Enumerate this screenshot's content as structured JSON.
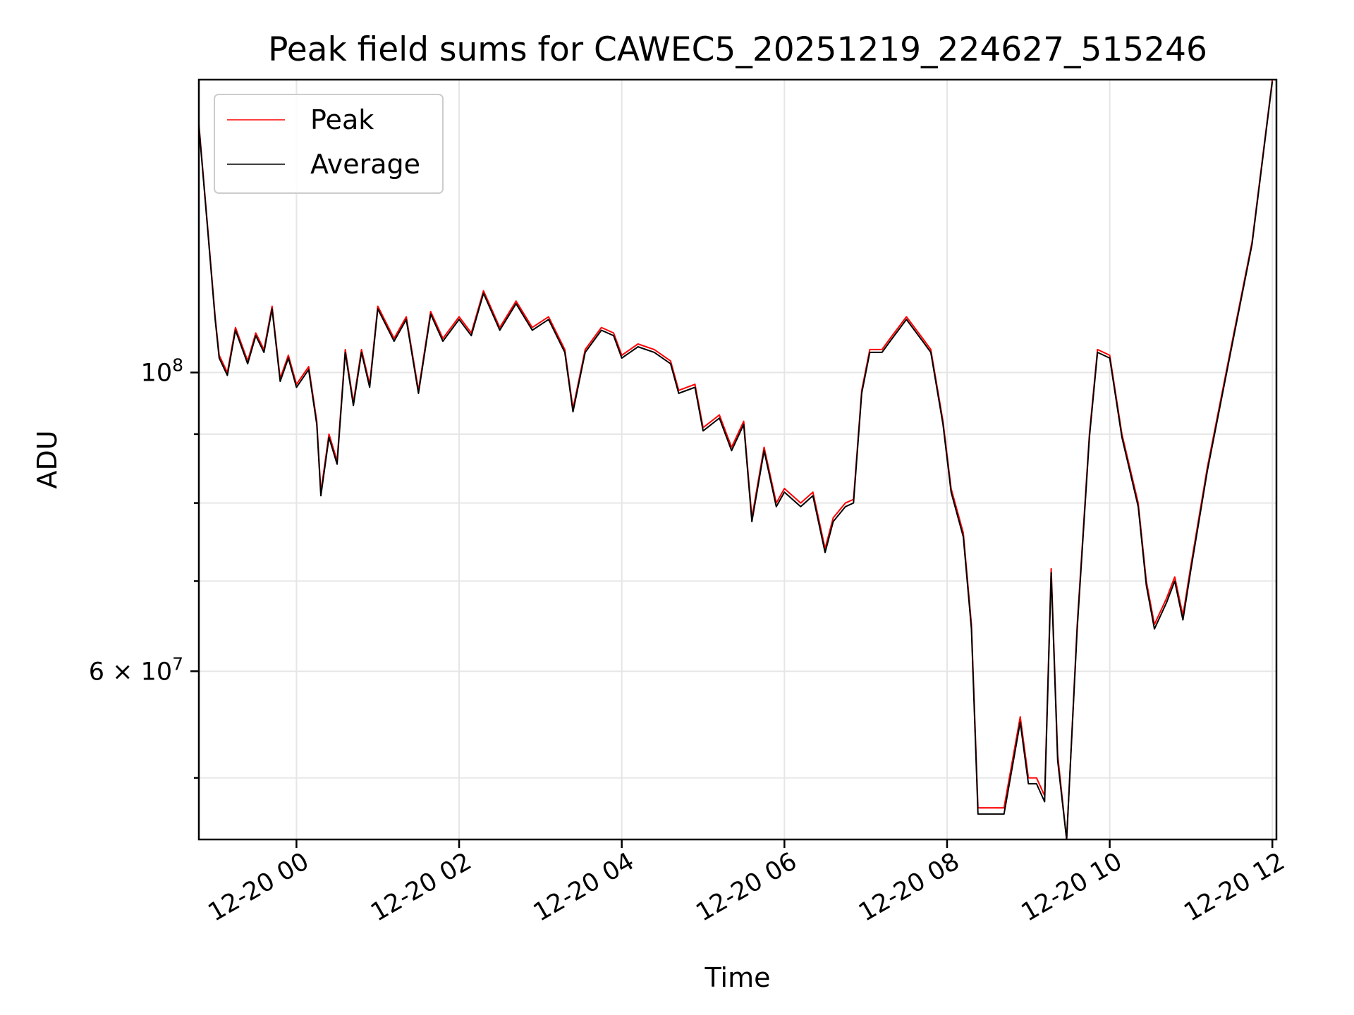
{
  "chart_data": {
    "type": "line",
    "title": "Peak field sums for CAWEC5_20251219_224627_515246",
    "xlabel": "Time",
    "ylabel": "ADU",
    "yscale": "log",
    "xlim_hours": [
      -1.2,
      12.05
    ],
    "ylim": [
      45000000,
      165000000
    ],
    "x_unit": "hours since 12-20 00:00",
    "grid": true,
    "legend_position": "top-left",
    "x_ticks": [
      {
        "value": 0,
        "label": "12-20 00"
      },
      {
        "value": 2,
        "label": "12-20 02"
      },
      {
        "value": 4,
        "label": "12-20 04"
      },
      {
        "value": 6,
        "label": "12-20 06"
      },
      {
        "value": 8,
        "label": "12-20 08"
      },
      {
        "value": 10,
        "label": "12-20 10"
      },
      {
        "value": 12,
        "label": "12-20 12"
      }
    ],
    "y_major_ticks": [
      {
        "value": 60000000,
        "label_base": "6 × 10",
        "label_exp": "7"
      },
      {
        "value": 100000000,
        "label_base": "10",
        "label_exp": "8"
      }
    ],
    "y_minor_gridlines": [
      50000000,
      70000000,
      80000000,
      90000000
    ],
    "series": [
      {
        "name": "Peak",
        "color": "#ff0000",
        "points": [
          [
            -1.2,
            153000000
          ],
          [
            -1.1,
            130000000
          ],
          [
            -1.0,
            110000000
          ],
          [
            -0.95,
            103000000
          ],
          [
            -0.85,
            100000000
          ],
          [
            -0.75,
            108000000
          ],
          [
            -0.6,
            102000000
          ],
          [
            -0.5,
            107000000
          ],
          [
            -0.4,
            104000000
          ],
          [
            -0.3,
            112000000
          ],
          [
            -0.2,
            99000000
          ],
          [
            -0.1,
            103000000
          ],
          [
            0.0,
            98000000
          ],
          [
            0.15,
            101000000
          ],
          [
            0.25,
            92000000
          ],
          [
            0.3,
            81500000
          ],
          [
            0.4,
            90000000
          ],
          [
            0.5,
            86000000
          ],
          [
            0.6,
            104000000
          ],
          [
            0.7,
            95000000
          ],
          [
            0.8,
            104000000
          ],
          [
            0.9,
            98000000
          ],
          [
            1.0,
            112000000
          ],
          [
            1.2,
            106000000
          ],
          [
            1.35,
            110000000
          ],
          [
            1.5,
            97000000
          ],
          [
            1.65,
            111000000
          ],
          [
            1.8,
            106000000
          ],
          [
            2.0,
            110000000
          ],
          [
            2.15,
            107000000
          ],
          [
            2.3,
            115000000
          ],
          [
            2.5,
            108000000
          ],
          [
            2.7,
            113000000
          ],
          [
            2.9,
            108000000
          ],
          [
            3.1,
            110000000
          ],
          [
            3.3,
            104000000
          ],
          [
            3.4,
            94000000
          ],
          [
            3.55,
            104000000
          ],
          [
            3.75,
            108000000
          ],
          [
            3.9,
            107000000
          ],
          [
            4.0,
            103000000
          ],
          [
            4.2,
            105000000
          ],
          [
            4.4,
            104000000
          ],
          [
            4.6,
            102000000
          ],
          [
            4.7,
            97000000
          ],
          [
            4.9,
            98000000
          ],
          [
            5.0,
            91000000
          ],
          [
            5.2,
            93000000
          ],
          [
            5.35,
            88000000
          ],
          [
            5.5,
            92000000
          ],
          [
            5.6,
            78000000
          ],
          [
            5.75,
            88000000
          ],
          [
            5.9,
            80000000
          ],
          [
            6.0,
            82000000
          ],
          [
            6.2,
            80000000
          ],
          [
            6.35,
            81500000
          ],
          [
            6.5,
            74000000
          ],
          [
            6.6,
            78000000
          ],
          [
            6.75,
            80000000
          ],
          [
            6.85,
            80500000
          ],
          [
            6.95,
            97000000
          ],
          [
            7.05,
            104000000
          ],
          [
            7.2,
            104000000
          ],
          [
            7.3,
            106000000
          ],
          [
            7.5,
            110000000
          ],
          [
            7.7,
            106000000
          ],
          [
            7.8,
            104000000
          ],
          [
            7.95,
            92000000
          ],
          [
            8.05,
            82000000
          ],
          [
            8.2,
            76000000
          ],
          [
            8.3,
            65000000
          ],
          [
            8.38,
            47500000
          ],
          [
            8.7,
            47500000
          ],
          [
            8.9,
            55500000
          ],
          [
            9.0,
            50000000
          ],
          [
            9.1,
            50000000
          ],
          [
            9.2,
            48500000
          ],
          [
            9.28,
            71500000
          ],
          [
            9.36,
            52000000
          ],
          [
            9.47,
            45000000
          ],
          [
            9.6,
            65000000
          ],
          [
            9.75,
            90000000
          ],
          [
            9.85,
            104000000
          ],
          [
            10.0,
            103000000
          ],
          [
            10.15,
            90000000
          ],
          [
            10.35,
            80000000
          ],
          [
            10.45,
            70000000
          ],
          [
            10.55,
            65000000
          ],
          [
            10.7,
            68000000
          ],
          [
            10.8,
            70500000
          ],
          [
            10.9,
            66000000
          ],
          [
            11.0,
            72000000
          ],
          [
            11.2,
            85000000
          ],
          [
            11.5,
            105000000
          ],
          [
            11.75,
            125000000
          ],
          [
            12.0,
            165000000
          ]
        ]
      },
      {
        "name": "Average",
        "color": "#000000",
        "points": [
          [
            -1.2,
            152500000
          ],
          [
            -1.1,
            129500000
          ],
          [
            -1.0,
            109500000
          ],
          [
            -0.95,
            102500000
          ],
          [
            -0.85,
            99500000
          ],
          [
            -0.75,
            107500000
          ],
          [
            -0.6,
            101500000
          ],
          [
            -0.5,
            106500000
          ],
          [
            -0.4,
            103500000
          ],
          [
            -0.3,
            111500000
          ],
          [
            -0.2,
            98500000
          ],
          [
            -0.1,
            102500000
          ],
          [
            0.0,
            97500000
          ],
          [
            0.15,
            100500000
          ],
          [
            0.25,
            91500000
          ],
          [
            0.3,
            81000000
          ],
          [
            0.4,
            89500000
          ],
          [
            0.5,
            85500000
          ],
          [
            0.6,
            103500000
          ],
          [
            0.7,
            94500000
          ],
          [
            0.8,
            103500000
          ],
          [
            0.9,
            97500000
          ],
          [
            1.0,
            111500000
          ],
          [
            1.2,
            105500000
          ],
          [
            1.35,
            109500000
          ],
          [
            1.5,
            96500000
          ],
          [
            1.65,
            110500000
          ],
          [
            1.8,
            105500000
          ],
          [
            2.0,
            109500000
          ],
          [
            2.15,
            106500000
          ],
          [
            2.3,
            114500000
          ],
          [
            2.5,
            107500000
          ],
          [
            2.7,
            112500000
          ],
          [
            2.9,
            107500000
          ],
          [
            3.1,
            109500000
          ],
          [
            3.3,
            103500000
          ],
          [
            3.4,
            93500000
          ],
          [
            3.55,
            103500000
          ],
          [
            3.75,
            107500000
          ],
          [
            3.9,
            106500000
          ],
          [
            4.0,
            102500000
          ],
          [
            4.2,
            104500000
          ],
          [
            4.4,
            103500000
          ],
          [
            4.6,
            101500000
          ],
          [
            4.7,
            96500000
          ],
          [
            4.9,
            97500000
          ],
          [
            5.0,
            90500000
          ],
          [
            5.2,
            92500000
          ],
          [
            5.35,
            87500000
          ],
          [
            5.5,
            91500000
          ],
          [
            5.6,
            77500000
          ],
          [
            5.75,
            87500000
          ],
          [
            5.9,
            79500000
          ],
          [
            6.0,
            81500000
          ],
          [
            6.2,
            79500000
          ],
          [
            6.35,
            81000000
          ],
          [
            6.5,
            73500000
          ],
          [
            6.6,
            77500000
          ],
          [
            6.75,
            79500000
          ],
          [
            6.85,
            80000000
          ],
          [
            6.95,
            96500000
          ],
          [
            7.05,
            103500000
          ],
          [
            7.2,
            103500000
          ],
          [
            7.3,
            105500000
          ],
          [
            7.5,
            109500000
          ],
          [
            7.7,
            105500000
          ],
          [
            7.8,
            103500000
          ],
          [
            7.95,
            91500000
          ],
          [
            8.05,
            81500000
          ],
          [
            8.2,
            75500000
          ],
          [
            8.3,
            64500000
          ],
          [
            8.38,
            47000000
          ],
          [
            8.7,
            47000000
          ],
          [
            8.9,
            55000000
          ],
          [
            9.0,
            49500000
          ],
          [
            9.1,
            49500000
          ],
          [
            9.2,
            48000000
          ],
          [
            9.28,
            71000000
          ],
          [
            9.36,
            51500000
          ],
          [
            9.47,
            45000000
          ],
          [
            9.6,
            64500000
          ],
          [
            9.75,
            89500000
          ],
          [
            9.85,
            103500000
          ],
          [
            10.0,
            102500000
          ],
          [
            10.15,
            89500000
          ],
          [
            10.35,
            79500000
          ],
          [
            10.45,
            69500000
          ],
          [
            10.55,
            64500000
          ],
          [
            10.7,
            67500000
          ],
          [
            10.8,
            70000000
          ],
          [
            10.9,
            65500000
          ],
          [
            11.0,
            71500000
          ],
          [
            11.2,
            84500000
          ],
          [
            11.5,
            104500000
          ],
          [
            11.75,
            124500000
          ],
          [
            12.0,
            164500000
          ]
        ]
      }
    ]
  }
}
